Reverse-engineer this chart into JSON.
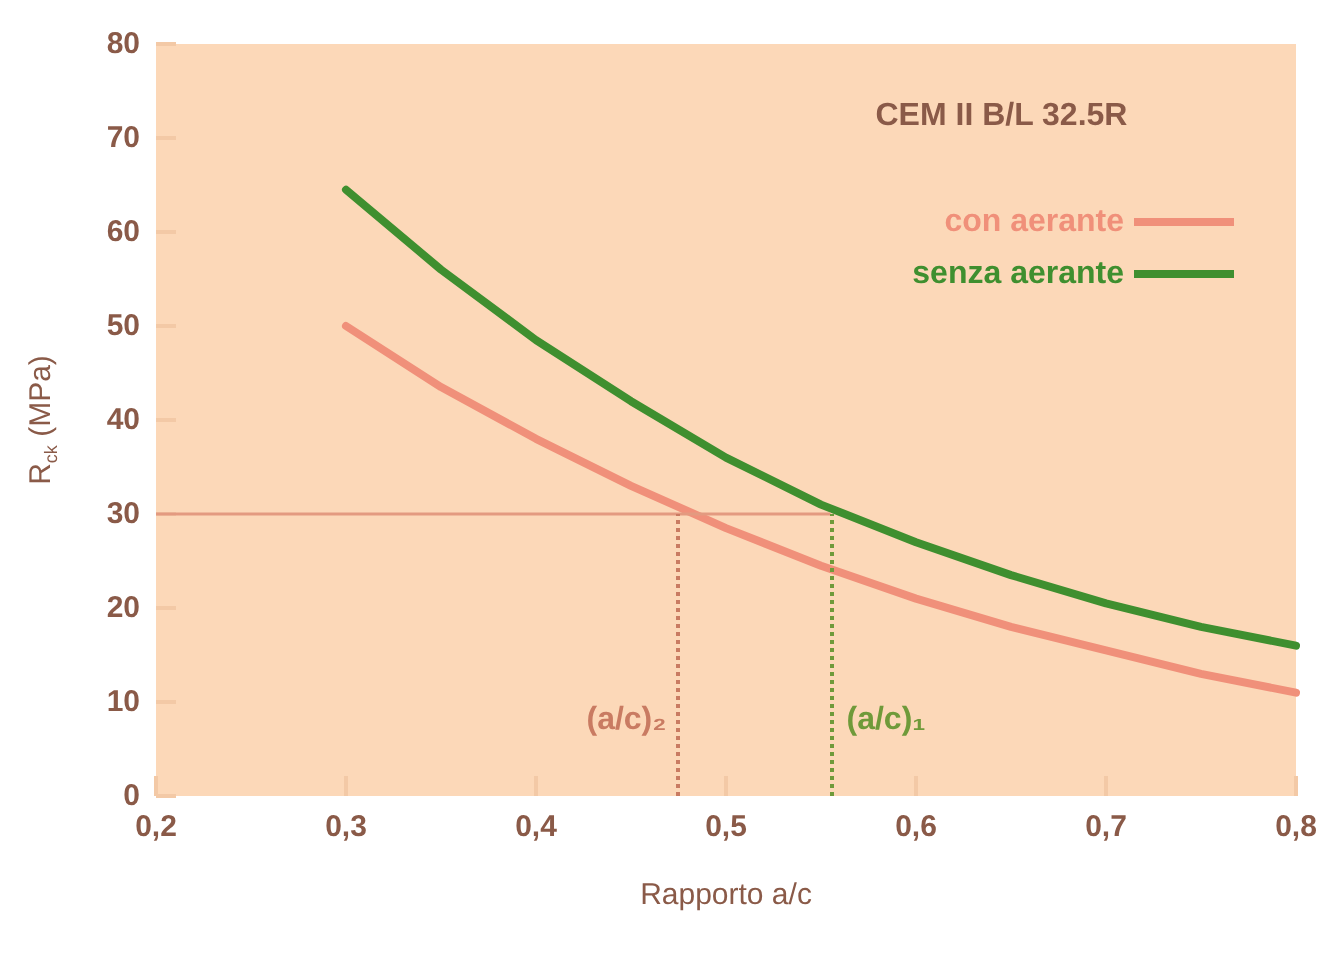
{
  "chart_data": {
    "type": "line",
    "title": "CEM II B/L 32.5R",
    "xlabel": "Rapporto a/c",
    "ylabel": "R$_{ck}$ (MPa)",
    "x": [
      0.3,
      0.35,
      0.4,
      0.45,
      0.5,
      0.55,
      0.6,
      0.65,
      0.7,
      0.75,
      0.8
    ],
    "series": [
      {
        "name": "con aerante",
        "color": "#f0907a",
        "values": [
          50,
          43.5,
          38,
          33,
          28.5,
          24.5,
          21,
          18,
          15.5,
          13,
          11
        ]
      },
      {
        "name": "senza aerante",
        "color": "#3f8f2f",
        "values": [
          64.5,
          56,
          48.5,
          42,
          36,
          31,
          27,
          23.5,
          20.5,
          18,
          16
        ]
      }
    ],
    "xlim": [
      0.2,
      0.8
    ],
    "xticks": [
      {
        "value": 0.2,
        "label": "0,2"
      },
      {
        "value": 0.3,
        "label": "0,3"
      },
      {
        "value": 0.4,
        "label": "0,4"
      },
      {
        "value": 0.5,
        "label": "0,5"
      },
      {
        "value": 0.6,
        "label": "0,6"
      },
      {
        "value": 0.7,
        "label": "0,7"
      },
      {
        "value": 0.8,
        "label": "0,8"
      }
    ],
    "ylim": [
      0,
      80
    ],
    "yticks": [
      0,
      10,
      20,
      30,
      40,
      50,
      60,
      70,
      80
    ],
    "ref_lines": [
      {
        "axis": "y",
        "value": 30,
        "color": "#e39a80",
        "line_style": "solid"
      },
      {
        "axis": "x",
        "value": 0.475,
        "label": "(a/c)₂",
        "color": "#c97b62",
        "line_style": "dotted"
      },
      {
        "axis": "x",
        "value": 0.555,
        "label": "(a/c)₁",
        "color": "#6f9a3a",
        "line_style": "dotted"
      }
    ],
    "legend": "top right",
    "grid": false,
    "marker": "none",
    "line_style": "solid"
  }
}
